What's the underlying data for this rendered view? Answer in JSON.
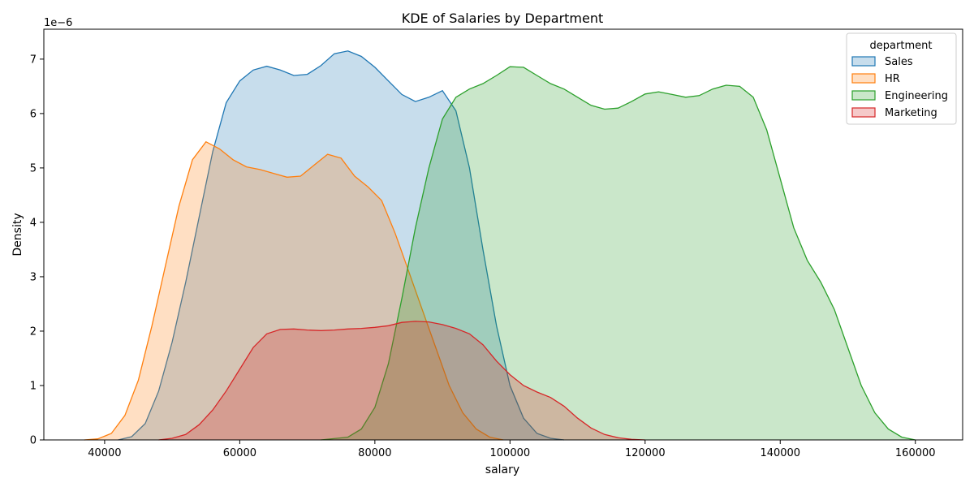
{
  "chart_data": {
    "type": "area",
    "title": "KDE of Salaries by Department",
    "xlabel": "salary",
    "ylabel": "Density",
    "y_scale_label": "1e−6",
    "y_scale_factor": 1e-06,
    "xlim": [
      31000,
      167000
    ],
    "ylim": [
      0,
      7.55
    ],
    "x_ticks": [
      40000,
      60000,
      80000,
      100000,
      120000,
      140000,
      160000
    ],
    "x_tick_labels": [
      "40000",
      "60000",
      "80000",
      "100000",
      "120000",
      "140000",
      "160000"
    ],
    "y_ticks": [
      0,
      1,
      2,
      3,
      4,
      5,
      6,
      7
    ],
    "y_tick_labels": [
      "0",
      "1",
      "2",
      "3",
      "4",
      "5",
      "6",
      "7"
    ],
    "grid": false,
    "legend": {
      "title": "department",
      "placement": "top-right"
    },
    "series": [
      {
        "name": "Sales",
        "color": "#1f77b4",
        "points": [
          [
            42000,
            0
          ],
          [
            44000,
            0.06
          ],
          [
            46000,
            0.3
          ],
          [
            48000,
            0.9
          ],
          [
            50000,
            1.8
          ],
          [
            52000,
            2.9
          ],
          [
            54000,
            4.1
          ],
          [
            56000,
            5.3
          ],
          [
            58000,
            6.2
          ],
          [
            60000,
            6.6
          ],
          [
            62000,
            6.8
          ],
          [
            64000,
            6.87
          ],
          [
            66000,
            6.8
          ],
          [
            68000,
            6.7
          ],
          [
            70000,
            6.72
          ],
          [
            72000,
            6.88
          ],
          [
            74000,
            7.1
          ],
          [
            76000,
            7.15
          ],
          [
            78000,
            7.05
          ],
          [
            80000,
            6.85
          ],
          [
            82000,
            6.6
          ],
          [
            84000,
            6.35
          ],
          [
            86000,
            6.22
          ],
          [
            88000,
            6.3
          ],
          [
            90000,
            6.42
          ],
          [
            92000,
            6.05
          ],
          [
            94000,
            5.0
          ],
          [
            96000,
            3.5
          ],
          [
            98000,
            2.1
          ],
          [
            100000,
            1.0
          ],
          [
            102000,
            0.4
          ],
          [
            104000,
            0.12
          ],
          [
            106000,
            0.03
          ],
          [
            108000,
            0
          ]
        ]
      },
      {
        "name": "HR",
        "color": "#ff7f0e",
        "points": [
          [
            37000,
            0
          ],
          [
            39000,
            0.02
          ],
          [
            41000,
            0.12
          ],
          [
            43000,
            0.45
          ],
          [
            45000,
            1.1
          ],
          [
            47000,
            2.1
          ],
          [
            49000,
            3.2
          ],
          [
            51000,
            4.3
          ],
          [
            53000,
            5.15
          ],
          [
            55000,
            5.48
          ],
          [
            57000,
            5.35
          ],
          [
            59000,
            5.15
          ],
          [
            61000,
            5.02
          ],
          [
            63000,
            4.97
          ],
          [
            65000,
            4.9
          ],
          [
            67000,
            4.83
          ],
          [
            69000,
            4.85
          ],
          [
            71000,
            5.05
          ],
          [
            73000,
            5.25
          ],
          [
            75000,
            5.18
          ],
          [
            77000,
            4.85
          ],
          [
            79000,
            4.65
          ],
          [
            81000,
            4.4
          ],
          [
            83000,
            3.8
          ],
          [
            85000,
            3.1
          ],
          [
            87000,
            2.4
          ],
          [
            89000,
            1.7
          ],
          [
            91000,
            1.0
          ],
          [
            93000,
            0.5
          ],
          [
            95000,
            0.2
          ],
          [
            97000,
            0.05
          ],
          [
            99000,
            0
          ]
        ]
      },
      {
        "name": "Engineering",
        "color": "#2ca02c",
        "points": [
          [
            72000,
            0
          ],
          [
            76000,
            0.05
          ],
          [
            78000,
            0.2
          ],
          [
            80000,
            0.6
          ],
          [
            82000,
            1.4
          ],
          [
            84000,
            2.6
          ],
          [
            86000,
            3.9
          ],
          [
            88000,
            5.0
          ],
          [
            90000,
            5.9
          ],
          [
            92000,
            6.3
          ],
          [
            94000,
            6.45
          ],
          [
            96000,
            6.55
          ],
          [
            98000,
            6.7
          ],
          [
            100000,
            6.86
          ],
          [
            102000,
            6.85
          ],
          [
            104000,
            6.7
          ],
          [
            106000,
            6.55
          ],
          [
            108000,
            6.45
          ],
          [
            110000,
            6.3
          ],
          [
            112000,
            6.15
          ],
          [
            114000,
            6.08
          ],
          [
            116000,
            6.1
          ],
          [
            118000,
            6.22
          ],
          [
            120000,
            6.36
          ],
          [
            122000,
            6.4
          ],
          [
            124000,
            6.35
          ],
          [
            126000,
            6.3
          ],
          [
            128000,
            6.33
          ],
          [
            130000,
            6.45
          ],
          [
            132000,
            6.52
          ],
          [
            134000,
            6.5
          ],
          [
            136000,
            6.3
          ],
          [
            138000,
            5.7
          ],
          [
            140000,
            4.8
          ],
          [
            142000,
            3.9
          ],
          [
            144000,
            3.3
          ],
          [
            146000,
            2.9
          ],
          [
            148000,
            2.4
          ],
          [
            150000,
            1.7
          ],
          [
            152000,
            1.0
          ],
          [
            154000,
            0.5
          ],
          [
            156000,
            0.2
          ],
          [
            158000,
            0.05
          ],
          [
            160000,
            0
          ]
        ]
      },
      {
        "name": "Marketing",
        "color": "#d62728",
        "points": [
          [
            48000,
            0
          ],
          [
            50000,
            0.03
          ],
          [
            52000,
            0.1
          ],
          [
            54000,
            0.28
          ],
          [
            56000,
            0.55
          ],
          [
            58000,
            0.9
          ],
          [
            60000,
            1.3
          ],
          [
            62000,
            1.7
          ],
          [
            64000,
            1.95
          ],
          [
            66000,
            2.03
          ],
          [
            68000,
            2.04
          ],
          [
            70000,
            2.02
          ],
          [
            72000,
            2.01
          ],
          [
            74000,
            2.02
          ],
          [
            76000,
            2.04
          ],
          [
            78000,
            2.05
          ],
          [
            80000,
            2.07
          ],
          [
            82000,
            2.1
          ],
          [
            84000,
            2.16
          ],
          [
            86000,
            2.18
          ],
          [
            88000,
            2.17
          ],
          [
            90000,
            2.12
          ],
          [
            92000,
            2.05
          ],
          [
            94000,
            1.95
          ],
          [
            96000,
            1.75
          ],
          [
            98000,
            1.45
          ],
          [
            100000,
            1.2
          ],
          [
            102000,
            1.0
          ],
          [
            104000,
            0.88
          ],
          [
            106000,
            0.78
          ],
          [
            108000,
            0.62
          ],
          [
            110000,
            0.4
          ],
          [
            112000,
            0.22
          ],
          [
            114000,
            0.1
          ],
          [
            116000,
            0.04
          ],
          [
            118000,
            0.01
          ],
          [
            120000,
            0
          ]
        ]
      }
    ]
  }
}
